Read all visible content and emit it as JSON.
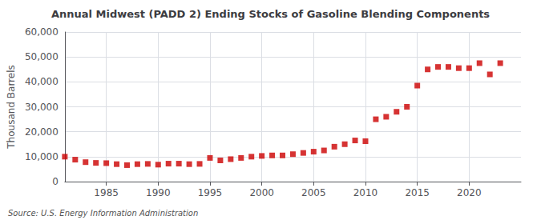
{
  "chart_data": {
    "type": "scatter",
    "title": "Annual Midwest (PADD 2) Ending Stocks of Gasoline Blending Components",
    "ylabel": "Thousand Barrels",
    "annotation": "Source: U.S. Energy Information Administration",
    "color": "#cc0000",
    "marker": "square",
    "grid": true,
    "x": [
      1981,
      1982,
      1983,
      1984,
      1985,
      1986,
      1987,
      1988,
      1989,
      1990,
      1991,
      1992,
      1993,
      1994,
      1995,
      1996,
      1997,
      1998,
      1999,
      2000,
      2001,
      2002,
      2003,
      2004,
      2005,
      2006,
      2007,
      2008,
      2009,
      2010,
      2011,
      2012,
      2013,
      2014,
      2015,
      2016,
      2017,
      2018,
      2019,
      2020,
      2021,
      2022,
      2023
    ],
    "values": [
      10000,
      8800,
      7800,
      7500,
      7400,
      7000,
      6600,
      7000,
      7100,
      6800,
      7200,
      7200,
      7000,
      7100,
      9500,
      8500,
      9000,
      9500,
      10000,
      10300,
      10500,
      10500,
      11000,
      11500,
      12000,
      12500,
      14000,
      15000,
      16500,
      16200,
      25000,
      26000,
      28000,
      30000,
      38500,
      45000,
      46000,
      46000,
      45500,
      45500,
      47500,
      43000,
      47500
    ],
    "xlim": [
      1981,
      2025
    ],
    "xticks": [
      1985,
      1990,
      1995,
      2000,
      2005,
      2010,
      2015,
      2020
    ],
    "ylim": [
      0,
      60000
    ],
    "yticks": [
      0,
      {
        "value": 10000,
        "label": "10,000"
      },
      {
        "value": 20000,
        "label": "20,000"
      },
      {
        "value": 30000,
        "label": "30,000"
      },
      {
        "value": 40000,
        "label": "40,000"
      },
      {
        "value": 50000,
        "label": "50,000"
      },
      {
        "value": 60000,
        "label": "60,000"
      }
    ]
  }
}
